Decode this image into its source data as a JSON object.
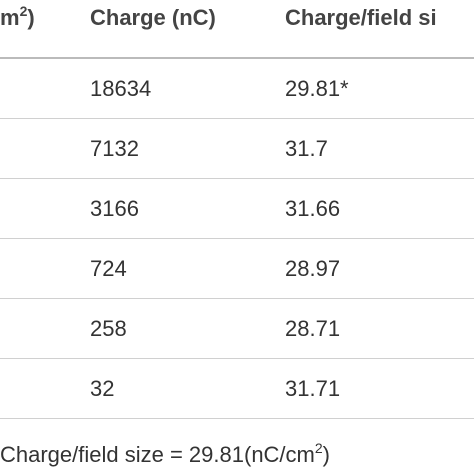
{
  "table": {
    "header": {
      "col1": {
        "text": "m",
        "sup": "2",
        "tail": ")"
      },
      "col2": "Charge (nC)",
      "col3": "Charge/field si"
    },
    "rows": [
      [
        "18634",
        "29.81*"
      ],
      [
        "7132",
        "31.7"
      ],
      [
        "3166",
        "31.66"
      ],
      [
        "724",
        "28.97"
      ],
      [
        "258",
        "28.71"
      ],
      [
        "32",
        "31.71"
      ]
    ]
  },
  "footer": {
    "text": "Charge/field size = 29.81(nC/cm",
    "sup": "2",
    "tail": ")"
  }
}
